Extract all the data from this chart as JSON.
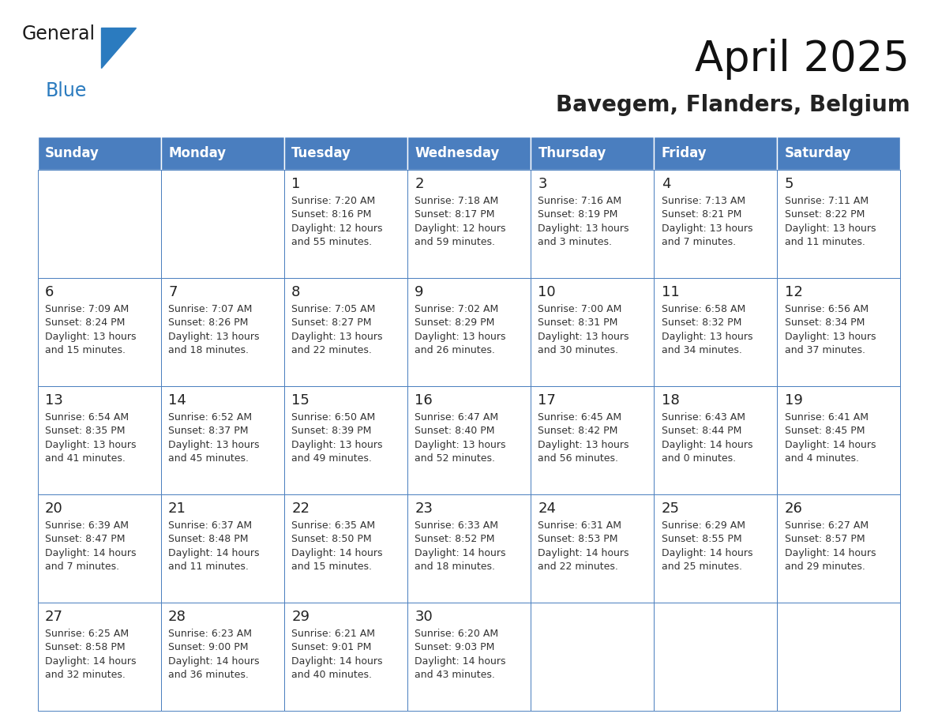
{
  "title": "April 2025",
  "subtitle": "Bavegem, Flanders, Belgium",
  "header_color": "#4a7ebf",
  "header_text_color": "#ffffff",
  "border_color": "#4a7ebf",
  "text_color": "#333333",
  "day_num_color": "#222222",
  "days_of_week": [
    "Sunday",
    "Monday",
    "Tuesday",
    "Wednesday",
    "Thursday",
    "Friday",
    "Saturday"
  ],
  "weeks": [
    [
      {
        "day": "",
        "info": ""
      },
      {
        "day": "",
        "info": ""
      },
      {
        "day": "1",
        "info": "Sunrise: 7:20 AM\nSunset: 8:16 PM\nDaylight: 12 hours\nand 55 minutes."
      },
      {
        "day": "2",
        "info": "Sunrise: 7:18 AM\nSunset: 8:17 PM\nDaylight: 12 hours\nand 59 minutes."
      },
      {
        "day": "3",
        "info": "Sunrise: 7:16 AM\nSunset: 8:19 PM\nDaylight: 13 hours\nand 3 minutes."
      },
      {
        "day": "4",
        "info": "Sunrise: 7:13 AM\nSunset: 8:21 PM\nDaylight: 13 hours\nand 7 minutes."
      },
      {
        "day": "5",
        "info": "Sunrise: 7:11 AM\nSunset: 8:22 PM\nDaylight: 13 hours\nand 11 minutes."
      }
    ],
    [
      {
        "day": "6",
        "info": "Sunrise: 7:09 AM\nSunset: 8:24 PM\nDaylight: 13 hours\nand 15 minutes."
      },
      {
        "day": "7",
        "info": "Sunrise: 7:07 AM\nSunset: 8:26 PM\nDaylight: 13 hours\nand 18 minutes."
      },
      {
        "day": "8",
        "info": "Sunrise: 7:05 AM\nSunset: 8:27 PM\nDaylight: 13 hours\nand 22 minutes."
      },
      {
        "day": "9",
        "info": "Sunrise: 7:02 AM\nSunset: 8:29 PM\nDaylight: 13 hours\nand 26 minutes."
      },
      {
        "day": "10",
        "info": "Sunrise: 7:00 AM\nSunset: 8:31 PM\nDaylight: 13 hours\nand 30 minutes."
      },
      {
        "day": "11",
        "info": "Sunrise: 6:58 AM\nSunset: 8:32 PM\nDaylight: 13 hours\nand 34 minutes."
      },
      {
        "day": "12",
        "info": "Sunrise: 6:56 AM\nSunset: 8:34 PM\nDaylight: 13 hours\nand 37 minutes."
      }
    ],
    [
      {
        "day": "13",
        "info": "Sunrise: 6:54 AM\nSunset: 8:35 PM\nDaylight: 13 hours\nand 41 minutes."
      },
      {
        "day": "14",
        "info": "Sunrise: 6:52 AM\nSunset: 8:37 PM\nDaylight: 13 hours\nand 45 minutes."
      },
      {
        "day": "15",
        "info": "Sunrise: 6:50 AM\nSunset: 8:39 PM\nDaylight: 13 hours\nand 49 minutes."
      },
      {
        "day": "16",
        "info": "Sunrise: 6:47 AM\nSunset: 8:40 PM\nDaylight: 13 hours\nand 52 minutes."
      },
      {
        "day": "17",
        "info": "Sunrise: 6:45 AM\nSunset: 8:42 PM\nDaylight: 13 hours\nand 56 minutes."
      },
      {
        "day": "18",
        "info": "Sunrise: 6:43 AM\nSunset: 8:44 PM\nDaylight: 14 hours\nand 0 minutes."
      },
      {
        "day": "19",
        "info": "Sunrise: 6:41 AM\nSunset: 8:45 PM\nDaylight: 14 hours\nand 4 minutes."
      }
    ],
    [
      {
        "day": "20",
        "info": "Sunrise: 6:39 AM\nSunset: 8:47 PM\nDaylight: 14 hours\nand 7 minutes."
      },
      {
        "day": "21",
        "info": "Sunrise: 6:37 AM\nSunset: 8:48 PM\nDaylight: 14 hours\nand 11 minutes."
      },
      {
        "day": "22",
        "info": "Sunrise: 6:35 AM\nSunset: 8:50 PM\nDaylight: 14 hours\nand 15 minutes."
      },
      {
        "day": "23",
        "info": "Sunrise: 6:33 AM\nSunset: 8:52 PM\nDaylight: 14 hours\nand 18 minutes."
      },
      {
        "day": "24",
        "info": "Sunrise: 6:31 AM\nSunset: 8:53 PM\nDaylight: 14 hours\nand 22 minutes."
      },
      {
        "day": "25",
        "info": "Sunrise: 6:29 AM\nSunset: 8:55 PM\nDaylight: 14 hours\nand 25 minutes."
      },
      {
        "day": "26",
        "info": "Sunrise: 6:27 AM\nSunset: 8:57 PM\nDaylight: 14 hours\nand 29 minutes."
      }
    ],
    [
      {
        "day": "27",
        "info": "Sunrise: 6:25 AM\nSunset: 8:58 PM\nDaylight: 14 hours\nand 32 minutes."
      },
      {
        "day": "28",
        "info": "Sunrise: 6:23 AM\nSunset: 9:00 PM\nDaylight: 14 hours\nand 36 minutes."
      },
      {
        "day": "29",
        "info": "Sunrise: 6:21 AM\nSunset: 9:01 PM\nDaylight: 14 hours\nand 40 minutes."
      },
      {
        "day": "30",
        "info": "Sunrise: 6:20 AM\nSunset: 9:03 PM\nDaylight: 14 hours\nand 43 minutes."
      },
      {
        "day": "",
        "info": ""
      },
      {
        "day": "",
        "info": ""
      },
      {
        "day": "",
        "info": ""
      }
    ]
  ],
  "logo_color_general": "#1a1a1a",
  "logo_color_blue": "#2b7bbf",
  "logo_triangle_color": "#2b7bbf",
  "title_fontsize": 38,
  "subtitle_fontsize": 20,
  "header_fontsize": 12,
  "day_num_fontsize": 13,
  "info_fontsize": 9
}
